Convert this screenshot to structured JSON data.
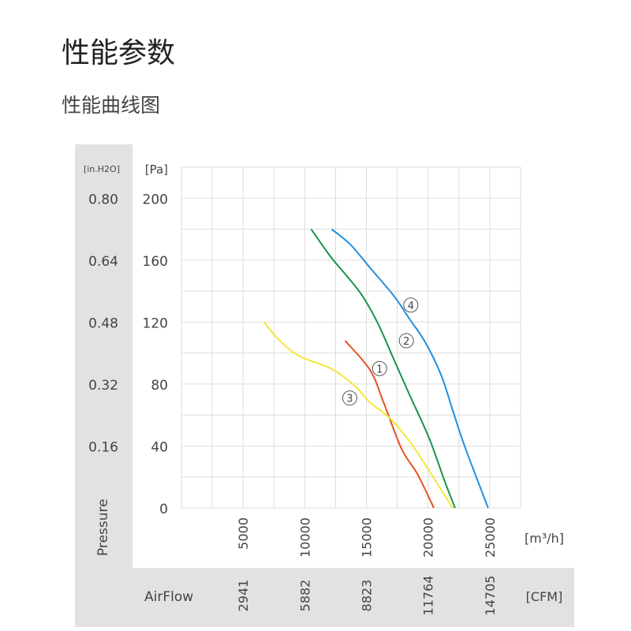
{
  "page": {
    "title": "性能参数",
    "subtitle": "性能曲线图"
  },
  "chart_data": {
    "type": "line",
    "title": "",
    "ylabel": "Pressure",
    "xlabel": "AirFlow",
    "y_unit_primary": "[Pa]",
    "y_unit_secondary": "[in.H2O]",
    "x_unit_primary": "[m³/h]",
    "x_unit_secondary": "[CFM]",
    "xlim": [
      0,
      27500
    ],
    "ylim": [
      0,
      220
    ],
    "grid": true,
    "x_ticks": [
      5000,
      10000,
      15000,
      20000,
      25000
    ],
    "x_tick_labels": [
      "5000",
      "10000",
      "15000",
      "20000",
      "25000"
    ],
    "x_secondary_tick_labels": [
      "2941",
      "5882",
      "8823",
      "11764",
      "14705"
    ],
    "y_ticks": [
      0,
      40,
      80,
      120,
      160,
      200
    ],
    "y_tick_labels": [
      "0",
      "40",
      "80",
      "120",
      "160",
      "200"
    ],
    "y_secondary_tick_labels": [
      "0.16",
      "0.32",
      "0.48",
      "0.64",
      "0.80"
    ],
    "series": [
      {
        "name": "①",
        "color": "#e8501e",
        "label_at": [
          16070,
          90
        ],
        "x": [
          13270,
          15300,
          16400,
          17860,
          19130,
          20470
        ],
        "y": [
          108,
          89,
          68,
          38,
          22,
          0
        ]
      },
      {
        "name": "②",
        "color": "#1a9150",
        "label_at": [
          18240,
          108
        ],
        "x": [
          10520,
          12120,
          13390,
          14670,
          15940,
          17220,
          18500,
          20090,
          21360,
          22190
        ],
        "y": [
          180,
          162,
          150,
          137,
          119,
          96,
          73,
          45,
          17,
          0
        ]
      },
      {
        "name": "③",
        "color": "#f2e838",
        "label_at": [
          13650,
          71
        ],
        "x": [
          6700,
          7970,
          9570,
          12120,
          14030,
          15300,
          16900,
          18500,
          19770,
          22000
        ],
        "y": [
          120,
          108,
          98,
          90,
          79,
          68,
          58,
          43,
          28,
          0
        ]
      },
      {
        "name": "④",
        "color": "#1f8fe0",
        "label_at": [
          18600,
          131
        ],
        "x": [
          12180,
          13710,
          15300,
          17220,
          18500,
          19770,
          21050,
          22000,
          22960,
          24870
        ],
        "y": [
          180,
          170,
          155,
          137,
          122,
          107,
          86,
          63,
          40,
          0
        ]
      }
    ]
  }
}
